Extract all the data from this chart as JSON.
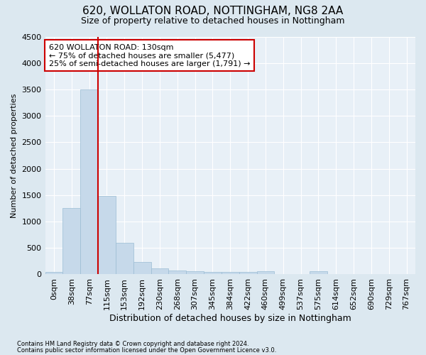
{
  "title1": "620, WOLLATON ROAD, NOTTINGHAM, NG8 2AA",
  "title2": "Size of property relative to detached houses in Nottingham",
  "xlabel": "Distribution of detached houses by size in Nottingham",
  "ylabel": "Number of detached properties",
  "footer1": "Contains HM Land Registry data © Crown copyright and database right 2024.",
  "footer2": "Contains public sector information licensed under the Open Government Licence v3.0.",
  "bin_labels": [
    "0sqm",
    "38sqm",
    "77sqm",
    "115sqm",
    "153sqm",
    "192sqm",
    "230sqm",
    "268sqm",
    "307sqm",
    "345sqm",
    "384sqm",
    "422sqm",
    "460sqm",
    "499sqm",
    "537sqm",
    "575sqm",
    "614sqm",
    "652sqm",
    "690sqm",
    "729sqm",
    "767sqm"
  ],
  "bar_heights": [
    50,
    1250,
    3500,
    1480,
    600,
    240,
    120,
    80,
    55,
    50,
    50,
    50,
    60,
    0,
    0,
    60,
    0,
    0,
    0,
    0,
    0
  ],
  "bar_color": "#c6d9ea",
  "bar_edge_color": "#9bbdd4",
  "vline_x_index": 3,
  "vline_color": "#cc0000",
  "annotation_text": "620 WOLLATON ROAD: 130sqm\n← 75% of detached houses are smaller (5,477)\n25% of semi-detached houses are larger (1,791) →",
  "annotation_box_color": "white",
  "annotation_box_edge": "#cc0000",
  "ylim": [
    0,
    4500
  ],
  "yticks": [
    0,
    500,
    1000,
    1500,
    2000,
    2500,
    3000,
    3500,
    4000,
    4500
  ],
  "bg_color": "#dce8f0",
  "plot_bg_color": "#e8f0f7",
  "grid_color": "white",
  "title1_fontsize": 11,
  "title2_fontsize": 9,
  "xlabel_fontsize": 9,
  "ylabel_fontsize": 8,
  "tick_fontsize": 8,
  "footer_fontsize": 6,
  "annot_fontsize": 8
}
